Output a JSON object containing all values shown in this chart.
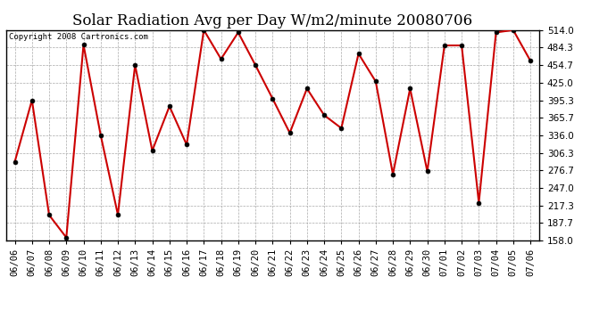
{
  "title": "Solar Radiation Avg per Day W/m2/minute 20080706",
  "copyright": "Copyright 2008 Cartronics.com",
  "dates": [
    "06/06",
    "06/07",
    "06/08",
    "06/09",
    "06/10",
    "06/11",
    "06/12",
    "06/13",
    "06/14",
    "06/15",
    "06/16",
    "06/17",
    "06/18",
    "06/19",
    "06/20",
    "06/21",
    "06/22",
    "06/23",
    "06/24",
    "06/25",
    "06/26",
    "06/27",
    "06/28",
    "06/29",
    "06/30",
    "07/01",
    "07/02",
    "07/03",
    "07/04",
    "07/05",
    "07/06"
  ],
  "values": [
    291.0,
    395.3,
    201.0,
    163.0,
    489.0,
    336.0,
    201.5,
    454.7,
    310.0,
    385.0,
    320.0,
    514.0,
    465.0,
    510.0,
    454.7,
    398.0,
    340.0,
    415.0,
    370.0,
    348.0,
    474.0,
    427.0,
    270.0,
    415.0,
    275.0,
    488.0,
    488.0,
    222.0,
    510.0,
    514.0,
    462.0
  ],
  "ylim": [
    158.0,
    514.0
  ],
  "yticks": [
    158.0,
    187.7,
    217.3,
    247.0,
    276.7,
    306.3,
    336.0,
    365.7,
    395.3,
    425.0,
    454.7,
    484.3,
    514.0
  ],
  "line_color": "#cc0000",
  "marker_size": 3.5,
  "bg_color": "#ffffff",
  "grid_color": "#aaaaaa",
  "title_fontsize": 12,
  "copyright_fontsize": 6.5,
  "tick_fontsize": 7.5,
  "figsize": [
    6.9,
    3.75
  ],
  "dpi": 100
}
